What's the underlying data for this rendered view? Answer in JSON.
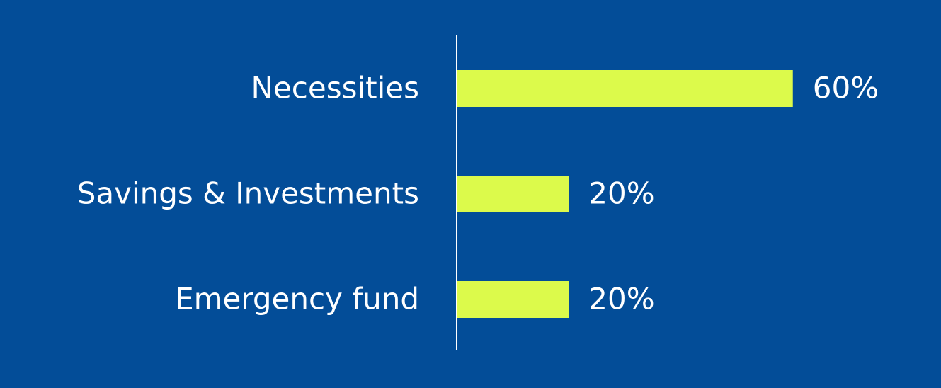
{
  "chart_data": {
    "type": "hbar",
    "categories": [
      "Necessities",
      "Savings & Investments",
      "Emergency fund"
    ],
    "values": [
      60,
      20,
      20
    ],
    "value_labels": [
      "60%",
      "20%",
      "20%"
    ],
    "color": "#dcfa4b",
    "xlim": [
      0,
      80
    ]
  }
}
